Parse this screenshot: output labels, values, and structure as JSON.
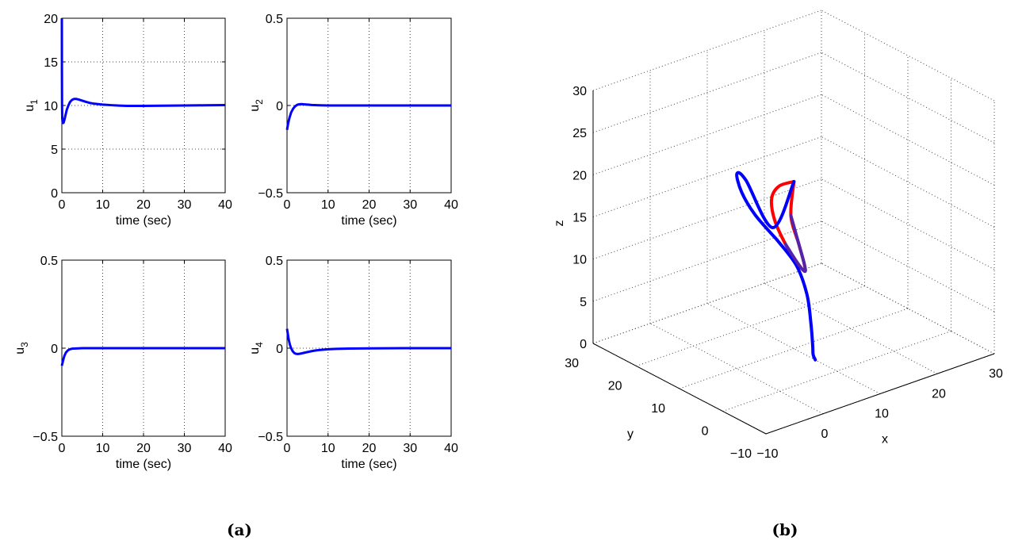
{
  "captions": [
    "(a)",
    "(b)"
  ],
  "chart_data": [
    {
      "type": "line",
      "ylabel": "u",
      "ylabel_sub": "1",
      "xlabel": "time (sec)",
      "xlim": [
        0,
        40
      ],
      "ylim": [
        0,
        20
      ],
      "xticks": [
        "0",
        "10",
        "20",
        "30",
        "40"
      ],
      "yticks": [
        "0",
        "5",
        "10",
        "15",
        "20"
      ],
      "grid": true,
      "series": [
        {
          "color": "#0000ff",
          "x": [
            0,
            0.02,
            0.05,
            0.1,
            0.2,
            0.4,
            0.6,
            0.9,
            1.2,
            1.6,
            2.0,
            2.5,
            3.0,
            3.5,
            4.0,
            5.0,
            6.0,
            7.0,
            8.0,
            10.0,
            12.0,
            14.0,
            16.0,
            18.0,
            20.0,
            25.0,
            30.0,
            35.0,
            40.0
          ],
          "y": [
            20,
            14,
            10,
            8.5,
            8.0,
            8.0,
            8.3,
            8.9,
            9.5,
            10.0,
            10.4,
            10.65,
            10.75,
            10.75,
            10.7,
            10.55,
            10.4,
            10.28,
            10.2,
            10.1,
            10.04,
            9.99,
            9.96,
            9.95,
            9.96,
            9.98,
            10.0,
            10.02,
            10.05
          ]
        }
      ]
    },
    {
      "type": "line",
      "ylabel": "u",
      "ylabel_sub": "2",
      "xlabel": "time (sec)",
      "xlim": [
        0,
        40
      ],
      "ylim": [
        -0.5,
        0.5
      ],
      "xticks": [
        "0",
        "10",
        "20",
        "30",
        "40"
      ],
      "yticks": [
        "−0.5",
        "0",
        "0.5"
      ],
      "grid": true,
      "series": [
        {
          "color": "#0000ff",
          "x": [
            0,
            0.3,
            0.6,
            1.0,
            1.5,
            2.0,
            2.5,
            3.0,
            3.5,
            4.0,
            5.0,
            6.0,
            8.0,
            10.0,
            20.0,
            30.0,
            40.0
          ],
          "y": [
            -0.14,
            -0.1,
            -0.07,
            -0.04,
            -0.018,
            -0.004,
            0.004,
            0.007,
            0.008,
            0.007,
            0.005,
            0.003,
            0.001,
            0.0,
            0.0,
            0.0,
            0.0
          ]
        }
      ]
    },
    {
      "type": "line",
      "ylabel": "u",
      "ylabel_sub": "3",
      "xlabel": "time (sec)",
      "xlim": [
        0,
        40
      ],
      "ylim": [
        -0.5,
        0.5
      ],
      "xticks": [
        "0",
        "10",
        "20",
        "30",
        "40"
      ],
      "yticks": [
        "−0.5",
        "0",
        "0.5"
      ],
      "grid": true,
      "series": [
        {
          "color": "#0000ff",
          "x": [
            0,
            0.3,
            0.6,
            1.0,
            1.5,
            2.0,
            2.5,
            3.0,
            4.0,
            5.0,
            7.0,
            10.0,
            20.0,
            30.0,
            40.0
          ],
          "y": [
            -0.1,
            -0.07,
            -0.045,
            -0.025,
            -0.012,
            -0.006,
            -0.003,
            -0.002,
            -0.001,
            0.0,
            0.0,
            0.0,
            0.0,
            0.0,
            0.0
          ]
        }
      ]
    },
    {
      "type": "line",
      "ylabel": "u",
      "ylabel_sub": "4",
      "xlabel": "time (sec)",
      "xlim": [
        0,
        40
      ],
      "ylim": [
        -0.5,
        0.5
      ],
      "xticks": [
        "0",
        "10",
        "20",
        "30",
        "40"
      ],
      "yticks": [
        "−0.5",
        "0",
        "0.5"
      ],
      "grid": true,
      "series": [
        {
          "color": "#0000ff",
          "x": [
            0,
            0.2,
            0.4,
            0.7,
            1.0,
            1.4,
            1.8,
            2.2,
            2.6,
            3.0,
            3.5,
            4.0,
            5.0,
            6.0,
            7.0,
            8.0,
            10.0,
            12.0,
            15.0,
            20.0,
            30.0,
            40.0
          ],
          "y": [
            0.11,
            0.08,
            0.05,
            0.02,
            0.0,
            -0.018,
            -0.028,
            -0.032,
            -0.033,
            -0.032,
            -0.03,
            -0.027,
            -0.022,
            -0.017,
            -0.013,
            -0.01,
            -0.006,
            -0.004,
            -0.002,
            -0.001,
            0.0,
            0.0
          ]
        }
      ]
    },
    {
      "type": "line3d",
      "xlabel": "x",
      "ylabel": "y",
      "zlabel": "z",
      "xlim": [
        -10,
        30
      ],
      "ylim": [
        -10,
        30
      ],
      "zlim": [
        0,
        30
      ],
      "xticks": [
        "−10",
        "0",
        "10",
        "20",
        "30"
      ],
      "yticks": [
        "−10",
        "0",
        "10",
        "20",
        "30"
      ],
      "zticks": [
        "0",
        "5",
        "10",
        "15",
        "20",
        "25",
        "30"
      ],
      "grid": true,
      "series": [
        {
          "color": "#ff0000",
          "points": [
            [
              10.2,
              10.2,
              19.7
            ],
            [
              5.7,
              7.7,
              20.9
            ],
            [
              1.6,
              4.0,
              21.4
            ],
            [
              -1.0,
              -0.1,
              20.6
            ],
            [
              -1.2,
              -2.9,
              18.5
            ],
            [
              0.8,
              -3.1,
              15.8
            ],
            [
              4.0,
              -0.5,
              13.4
            ],
            [
              7.4,
              4.1,
              12.2
            ],
            [
              9.9,
              8.7,
              12.8
            ],
            [
              10.8,
              11.7,
              15.1
            ],
            [
              10.2,
              10.2,
              19.7
            ]
          ]
        },
        {
          "color": "#0000ff",
          "points": [
            [
              7.9,
              11.1,
              13.1
            ],
            [
              9.4,
              8.6,
              10.4
            ],
            [
              9.9,
              6.8,
              7.3
            ],
            [
              10.0,
              6.0,
              4.0
            ],
            [
              10.0,
              5.6,
              1.5
            ],
            [
              10.0,
              5.5,
              0.5
            ],
            [
              10.0,
              5.0,
              0.0
            ]
          ]
        },
        {
          "color": "#0000ff",
          "points": [
            [
              7.9,
              11.1,
              13.1
            ],
            [
              6.4,
              14.2,
              15.6
            ],
            [
              5.7,
              16.4,
              17.9
            ],
            [
              6.1,
              18.0,
              19.5
            ],
            [
              7.3,
              17.5,
              18.6
            ],
            [
              9.9,
              14.7,
              13.1
            ],
            [
              10.2,
              10.2,
              19.7
            ]
          ]
        },
        {
          "color": "#5522aa",
          "points": [
            [
              10.8,
              11.7,
              15.1
            ],
            [
              9.9,
              8.7,
              12.8
            ],
            [
              7.4,
              4.1,
              12.2
            ],
            [
              4.0,
              -0.5,
              13.4
            ],
            [
              0.8,
              -3.1,
              15.8
            ],
            [
              -1.2,
              -2.9,
              18.5
            ]
          ]
        }
      ]
    }
  ]
}
